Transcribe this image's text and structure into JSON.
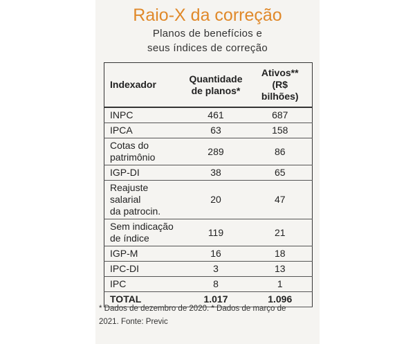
{
  "header": {
    "title": "Raio-X da correção",
    "subtitle": [
      "Planos de benefícios e",
      "seus índices de correção"
    ]
  },
  "table": {
    "columns": [
      [
        "Indexador"
      ],
      [
        "Quantidade",
        "de planos*"
      ],
      [
        "Ativos**",
        "(R$ bilhões)"
      ]
    ],
    "rows": [
      [
        [
          "INPC"
        ],
        "461",
        "687"
      ],
      [
        [
          "IPCA"
        ],
        "63",
        "158"
      ],
      [
        [
          "Cotas do",
          "patrimônio"
        ],
        "289",
        "86"
      ],
      [
        [
          "IGP-DI"
        ],
        "38",
        "65"
      ],
      [
        [
          "Reajuste salarial",
          "da patrocin."
        ],
        "20",
        "47"
      ],
      [
        [
          "Sem indicação",
          "de índice"
        ],
        "119",
        "21"
      ],
      [
        [
          "IGP-M"
        ],
        "16",
        "18"
      ],
      [
        [
          "IPC-DI"
        ],
        "3",
        "13"
      ],
      [
        [
          "IPC"
        ],
        "8",
        "1"
      ]
    ],
    "total": [
      "TOTAL",
      "1.017",
      "1.096"
    ]
  },
  "footnote": [
    "* Dados de dezembro de 2020. * Dados de março de",
    "2021. Fonte: Previc"
  ]
}
